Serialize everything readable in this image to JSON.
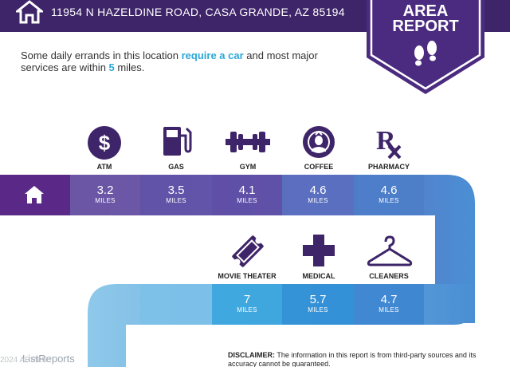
{
  "header": {
    "address": "11954 N HAZELDINE ROAD, CASA GRANDE, AZ 85194",
    "home_icon": "home-icon"
  },
  "badge": {
    "line1": "AREA",
    "line2": "REPORT",
    "icon": "footprints-icon",
    "color": "#4b2b7f"
  },
  "intro": {
    "text_before": "Some daily errands in this location ",
    "highlight1": "require a car",
    "text_middle": " and most major services are within ",
    "highlight2": "5",
    "text_after": " miles."
  },
  "row1": {
    "items": [
      {
        "label": "ATM",
        "value": "3.2",
        "unit": "MILES",
        "icon": "dollar-icon"
      },
      {
        "label": "GAS",
        "value": "3.5",
        "unit": "MILES",
        "icon": "gas-pump-icon"
      },
      {
        "label": "GYM",
        "value": "4.1",
        "unit": "MILES",
        "icon": "dumbbell-icon"
      },
      {
        "label": "COFFEE",
        "value": "4.6",
        "unit": "MILES",
        "icon": "coffee-logo-icon"
      },
      {
        "label": "PHARMACY",
        "value": "4.6",
        "unit": "MILES",
        "icon": "rx-icon"
      }
    ]
  },
  "row2": {
    "items": [
      {
        "label": "MOVIE THEATER",
        "value": "7",
        "unit": "MILES",
        "icon": "ticket-icon"
      },
      {
        "label": "MEDICAL",
        "value": "5.7",
        "unit": "MILES",
        "icon": "medical-cross-icon"
      },
      {
        "label": "CLEANERS",
        "value": "4.7",
        "unit": "MILES",
        "icon": "hanger-icon"
      }
    ]
  },
  "disclaimer": {
    "label": "DISCLAIMER:",
    "text": " The information in this report is from third-party sources and its accuracy cannot be guaranteed."
  },
  "footer": {
    "brand": "ListReports",
    "copyright": "2024 ARMLS"
  },
  "colors": {
    "header": "#3e2468",
    "purple_dark": "#5b2a86",
    "blue_mid": "#4a8fd4",
    "blue_light": "#8ec9ea",
    "highlight": "#2aa8d8"
  }
}
